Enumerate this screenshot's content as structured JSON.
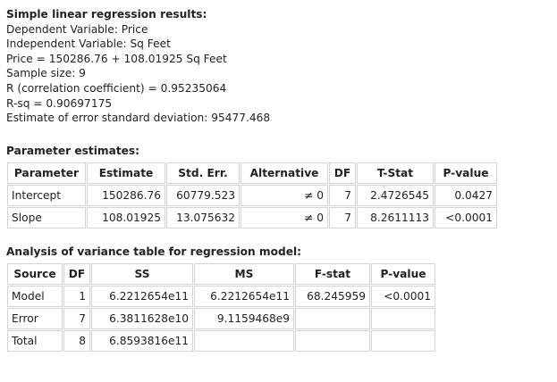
{
  "summary": {
    "title": "Simple linear regression results:",
    "lines": [
      "Dependent Variable: Price",
      "Independent Variable: Sq Feet",
      "Price = 150286.76 + 108.01925 Sq Feet",
      "Sample size: 9",
      "R (correlation coefficient) = 0.95235064",
      "R-sq = 0.90697175",
      "Estimate of error standard deviation: 95477.468"
    ]
  },
  "parameters": {
    "title": "Parameter estimates:",
    "headers": [
      "Parameter",
      "Estimate",
      "Std. Err.",
      "Alternative",
      "DF",
      "T-Stat",
      "P-value"
    ],
    "rows": [
      [
        "Intercept",
        "150286.76",
        "60779.523",
        "≠ 0",
        "7",
        "2.4726545",
        "0.0427"
      ],
      [
        "Slope",
        "108.01925",
        "13.075632",
        "≠ 0",
        "7",
        "8.2611113",
        "<0.0001"
      ]
    ]
  },
  "anova": {
    "title": "Analysis of variance table for regression model:",
    "headers": [
      "Source",
      "DF",
      "SS",
      "MS",
      "F-stat",
      "P-value"
    ],
    "rows": [
      [
        "Model",
        "1",
        "6.2212654e11",
        "6.2212654e11",
        "68.245959",
        "<0.0001"
      ],
      [
        "Error",
        "7",
        "6.3811628e10",
        "9.1159468e9",
        null,
        null
      ],
      [
        "Total",
        "8",
        "6.8593816e11",
        null,
        null,
        null
      ]
    ]
  }
}
